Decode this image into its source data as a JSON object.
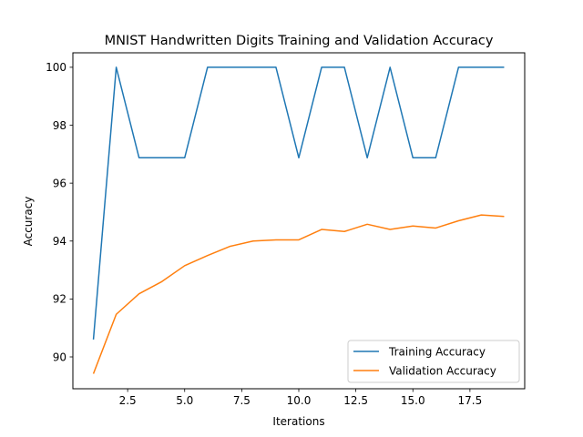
{
  "chart_data": {
    "type": "line",
    "title": "MNIST Handwritten Digits Training and Validation Accuracy",
    "xlabel": "Iterations",
    "ylabel": "Accuracy",
    "xlim": [
      0.1,
      19.9
    ],
    "ylim": [
      88.9,
      100.5
    ],
    "xticks": [
      2.5,
      5.0,
      7.5,
      10.0,
      12.5,
      15.0,
      17.5
    ],
    "xtick_labels": [
      "2.5",
      "5.0",
      "7.5",
      "10.0",
      "12.5",
      "15.0",
      "17.5"
    ],
    "yticks": [
      90,
      92,
      94,
      96,
      98,
      100
    ],
    "ytick_labels": [
      "90",
      "92",
      "94",
      "96",
      "98",
      "100"
    ],
    "grid": false,
    "legend_position": "lower-right",
    "x": [
      1,
      2,
      3,
      4,
      5,
      6,
      7,
      8,
      9,
      10,
      11,
      12,
      13,
      14,
      15,
      16,
      17,
      18,
      19
    ],
    "series": [
      {
        "name": "Training Accuracy",
        "color": "#1f77b4",
        "values": [
          90.6,
          100,
          96.875,
          96.875,
          96.875,
          100,
          100,
          100,
          100,
          96.875,
          100,
          100,
          96.875,
          100,
          96.875,
          96.875,
          100,
          100,
          100
        ]
      },
      {
        "name": "Validation Accuracy",
        "color": "#ff7f0e",
        "values": [
          89.42,
          91.47,
          92.18,
          92.6,
          93.15,
          93.5,
          93.82,
          94.0,
          94.04,
          94.04,
          94.4,
          94.33,
          94.58,
          94.4,
          94.52,
          94.45,
          94.7,
          94.9,
          94.85
        ]
      }
    ]
  }
}
